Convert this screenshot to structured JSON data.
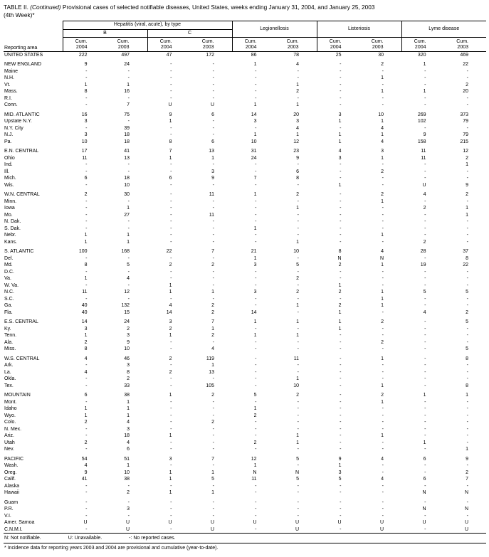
{
  "title": {
    "prefix": "TABLE II.",
    "continued": "(Continued)",
    "rest": "Provisional cases of selected notifiable diseases, United States, weeks ending January 31, 2004, and January 25, 2003",
    "line2": "(4th Week)*"
  },
  "header": {
    "reporting_area": "Reporting area",
    "hepatitis_group": "Hepatitis (viral, acute), by type",
    "hep_b": "B",
    "hep_c": "C",
    "legionellosis": "Legionellosis",
    "listeriosis": "Listeriosis",
    "lyme_disease": "Lyme disease",
    "cum_label": "Cum.",
    "years": [
      "2004",
      "2003",
      "2004",
      "2003",
      "2004",
      "2003",
      "2004",
      "2003",
      "2004",
      "2003"
    ]
  },
  "groups": [
    [
      {
        "a": "UNITED STATES",
        "v": [
          "222",
          "497",
          "47",
          "172",
          "86",
          "78",
          "25",
          "30",
          "320",
          "469"
        ]
      }
    ],
    [
      {
        "a": "NEW ENGLAND",
        "v": [
          "9",
          "24",
          "-",
          "-",
          "1",
          "4",
          "-",
          "2",
          "1",
          "22"
        ]
      },
      {
        "a": "Maine",
        "v": [
          "-",
          "-",
          "-",
          "-",
          "-",
          "-",
          "-",
          "-",
          "-",
          "-"
        ]
      },
      {
        "a": "N.H.",
        "v": [
          "-",
          "-",
          "-",
          "-",
          "-",
          "-",
          "-",
          "1",
          "-",
          "-"
        ]
      },
      {
        "a": "Vt.",
        "v": [
          "1",
          "1",
          "-",
          "-",
          "-",
          "1",
          "-",
          "-",
          "-",
          "2"
        ]
      },
      {
        "a": "Mass.",
        "v": [
          "8",
          "16",
          "-",
          "-",
          "-",
          "2",
          "-",
          "1",
          "1",
          "20"
        ]
      },
      {
        "a": "R.I.",
        "v": [
          "-",
          "-",
          "-",
          "-",
          "-",
          "-",
          "-",
          "-",
          "-",
          "-"
        ]
      },
      {
        "a": "Conn.",
        "v": [
          "-",
          "7",
          "U",
          "U",
          "1",
          "1",
          "-",
          "-",
          "-",
          "-"
        ]
      }
    ],
    [
      {
        "a": "MID. ATLANTIC",
        "v": [
          "16",
          "75",
          "9",
          "6",
          "14",
          "20",
          "3",
          "10",
          "269",
          "373"
        ]
      },
      {
        "a": "Upstate N.Y.",
        "v": [
          "3",
          "-",
          "1",
          "-",
          "3",
          "3",
          "1",
          "1",
          "102",
          "79"
        ]
      },
      {
        "a": "N.Y. City",
        "v": [
          "-",
          "39",
          "-",
          "-",
          "-",
          "4",
          "-",
          "4",
          "-",
          "-"
        ]
      },
      {
        "a": "N.J.",
        "v": [
          "3",
          "18",
          "-",
          "-",
          "1",
          "1",
          "1",
          "1",
          "9",
          "79"
        ]
      },
      {
        "a": "Pa.",
        "v": [
          "10",
          "18",
          "8",
          "6",
          "10",
          "12",
          "1",
          "4",
          "158",
          "215"
        ]
      }
    ],
    [
      {
        "a": "E.N. CENTRAL",
        "v": [
          "17",
          "41",
          "7",
          "13",
          "31",
          "23",
          "4",
          "3",
          "11",
          "12"
        ]
      },
      {
        "a": "Ohio",
        "v": [
          "11",
          "13",
          "1",
          "1",
          "24",
          "9",
          "3",
          "1",
          "11",
          "2"
        ]
      },
      {
        "a": "Ind.",
        "v": [
          "-",
          "-",
          "-",
          "-",
          "-",
          "-",
          "-",
          "-",
          "-",
          "1"
        ]
      },
      {
        "a": "Ill.",
        "v": [
          "-",
          "-",
          "-",
          "3",
          "-",
          "6",
          "-",
          "2",
          "-",
          "-"
        ]
      },
      {
        "a": "Mich.",
        "v": [
          "6",
          "18",
          "6",
          "9",
          "7",
          "8",
          "-",
          "-",
          "-",
          "-"
        ]
      },
      {
        "a": "Wis.",
        "v": [
          "-",
          "10",
          "-",
          "-",
          "-",
          "-",
          "1",
          "-",
          "U",
          "9"
        ]
      }
    ],
    [
      {
        "a": "W.N. CENTRAL",
        "v": [
          "2",
          "30",
          "-",
          "11",
          "1",
          "2",
          "-",
          "2",
          "4",
          "2"
        ]
      },
      {
        "a": "Minn.",
        "v": [
          "-",
          "-",
          "-",
          "-",
          "-",
          "-",
          "-",
          "1",
          "-",
          "-"
        ]
      },
      {
        "a": "Iowa",
        "v": [
          "-",
          "1",
          "-",
          "-",
          "-",
          "1",
          "-",
          "-",
          "2",
          "1"
        ]
      },
      {
        "a": "Mo.",
        "v": [
          "-",
          "27",
          "-",
          "11",
          "-",
          "-",
          "-",
          "-",
          "-",
          "1"
        ]
      },
      {
        "a": "N. Dak.",
        "v": [
          "-",
          "-",
          "-",
          "-",
          "-",
          "-",
          "-",
          "-",
          "-",
          "-"
        ]
      },
      {
        "a": "S. Dak.",
        "v": [
          "-",
          "-",
          "-",
          "-",
          "1",
          "-",
          "-",
          "-",
          "-",
          "-"
        ]
      },
      {
        "a": "Nebr.",
        "v": [
          "1",
          "1",
          "-",
          "-",
          "-",
          "-",
          "-",
          "1",
          "-",
          "-"
        ]
      },
      {
        "a": "Kans.",
        "v": [
          "1",
          "1",
          "-",
          "-",
          "-",
          "1",
          "-",
          "-",
          "2",
          "-"
        ]
      }
    ],
    [
      {
        "a": "S. ATLANTIC",
        "v": [
          "100",
          "168",
          "22",
          "7",
          "21",
          "10",
          "8",
          "4",
          "28",
          "37"
        ]
      },
      {
        "a": "Del.",
        "v": [
          "-",
          "-",
          "-",
          "-",
          "1",
          "-",
          "N",
          "N",
          "-",
          "8"
        ]
      },
      {
        "a": "Md.",
        "v": [
          "8",
          "5",
          "2",
          "2",
          "3",
          "5",
          "2",
          "1",
          "19",
          "22"
        ]
      },
      {
        "a": "D.C.",
        "v": [
          "-",
          "-",
          "-",
          "-",
          "-",
          "-",
          "-",
          "-",
          "-",
          "-"
        ]
      },
      {
        "a": "Va.",
        "v": [
          "1",
          "4",
          "-",
          "-",
          "-",
          "2",
          "-",
          "-",
          "-",
          "-"
        ]
      },
      {
        "a": "W. Va.",
        "v": [
          "-",
          "-",
          "1",
          "-",
          "-",
          "-",
          "1",
          "-",
          "-",
          "-"
        ]
      },
      {
        "a": "N.C.",
        "v": [
          "11",
          "12",
          "1",
          "1",
          "3",
          "2",
          "2",
          "1",
          "5",
          "5"
        ]
      },
      {
        "a": "S.C.",
        "v": [
          "-",
          "-",
          "-",
          "-",
          "-",
          "-",
          "-",
          "1",
          "-",
          "-"
        ]
      },
      {
        "a": "Ga.",
        "v": [
          "40",
          "132",
          "4",
          "2",
          "-",
          "1",
          "2",
          "1",
          "-",
          "-"
        ]
      },
      {
        "a": "Fla.",
        "v": [
          "40",
          "15",
          "14",
          "2",
          "14",
          "-",
          "1",
          "-",
          "4",
          "2"
        ]
      }
    ],
    [
      {
        "a": "E.S. CENTRAL",
        "v": [
          "14",
          "24",
          "3",
          "7",
          "1",
          "1",
          "1",
          "2",
          "-",
          "5"
        ]
      },
      {
        "a": "Ky.",
        "v": [
          "3",
          "2",
          "2",
          "1",
          "-",
          "-",
          "1",
          "-",
          "-",
          "-"
        ]
      },
      {
        "a": "Tenn.",
        "v": [
          "1",
          "3",
          "1",
          "2",
          "1",
          "1",
          "-",
          "-",
          "-",
          "-"
        ]
      },
      {
        "a": "Ala.",
        "v": [
          "2",
          "9",
          "-",
          "-",
          "-",
          "-",
          "-",
          "2",
          "-",
          "-"
        ]
      },
      {
        "a": "Miss.",
        "v": [
          "8",
          "10",
          "-",
          "4",
          "-",
          "-",
          "-",
          "-",
          "-",
          "5"
        ]
      }
    ],
    [
      {
        "a": "W.S. CENTRAL",
        "v": [
          "4",
          "46",
          "2",
          "119",
          "-",
          "11",
          "-",
          "1",
          "-",
          "8"
        ]
      },
      {
        "a": "Ark.",
        "v": [
          "-",
          "3",
          "-",
          "1",
          "-",
          "-",
          "-",
          "-",
          "-",
          "-"
        ]
      },
      {
        "a": "La.",
        "v": [
          "4",
          "8",
          "2",
          "13",
          "-",
          "-",
          "-",
          "-",
          "-",
          "-"
        ]
      },
      {
        "a": "Okla.",
        "v": [
          "-",
          "2",
          "-",
          "-",
          "-",
          "1",
          "-",
          "-",
          "-",
          "-"
        ]
      },
      {
        "a": "Tex.",
        "v": [
          "-",
          "33",
          "-",
          "105",
          "-",
          "10",
          "-",
          "1",
          "-",
          "8"
        ]
      }
    ],
    [
      {
        "a": "MOUNTAIN",
        "v": [
          "6",
          "38",
          "1",
          "2",
          "5",
          "2",
          "-",
          "2",
          "1",
          "1"
        ]
      },
      {
        "a": "Mont.",
        "v": [
          "-",
          "1",
          "-",
          "-",
          "-",
          "-",
          "-",
          "1",
          "-",
          "-"
        ]
      },
      {
        "a": "Idaho",
        "v": [
          "1",
          "1",
          "-",
          "-",
          "1",
          "-",
          "-",
          "-",
          "-",
          "-"
        ]
      },
      {
        "a": "Wyo.",
        "v": [
          "1",
          "1",
          "-",
          "-",
          "2",
          "-",
          "-",
          "-",
          "-",
          "-"
        ]
      },
      {
        "a": "Colo.",
        "v": [
          "2",
          "4",
          "-",
          "2",
          "-",
          "-",
          "-",
          "-",
          "-",
          "-"
        ]
      },
      {
        "a": "N. Mex.",
        "v": [
          "-",
          "3",
          "-",
          "-",
          "-",
          "-",
          "-",
          "-",
          "-",
          "-"
        ]
      },
      {
        "a": "Ariz.",
        "v": [
          "-",
          "18",
          "1",
          "-",
          "-",
          "1",
          "-",
          "1",
          "-",
          "-"
        ]
      },
      {
        "a": "Utah",
        "v": [
          "2",
          "4",
          "-",
          "-",
          "2",
          "1",
          "-",
          "-",
          "1",
          "-"
        ]
      },
      {
        "a": "Nev.",
        "v": [
          "-",
          "6",
          "-",
          "-",
          "-",
          "-",
          "-",
          "-",
          "-",
          "1"
        ]
      }
    ],
    [
      {
        "a": "PACIFIC",
        "v": [
          "54",
          "51",
          "3",
          "7",
          "12",
          "5",
          "9",
          "4",
          "6",
          "9"
        ]
      },
      {
        "a": "Wash.",
        "v": [
          "4",
          "1",
          "-",
          "-",
          "1",
          "-",
          "1",
          "-",
          "-",
          "-"
        ]
      },
      {
        "a": "Oreg.",
        "v": [
          "9",
          "10",
          "1",
          "1",
          "N",
          "N",
          "3",
          "-",
          "-",
          "2"
        ]
      },
      {
        "a": "Calif.",
        "v": [
          "41",
          "38",
          "1",
          "5",
          "11",
          "5",
          "5",
          "4",
          "6",
          "7"
        ]
      },
      {
        "a": "Alaska",
        "v": [
          "-",
          "-",
          "-",
          "-",
          "-",
          "-",
          "-",
          "-",
          "-",
          "-"
        ]
      },
      {
        "a": "Hawaii",
        "v": [
          "-",
          "2",
          "1",
          "1",
          "-",
          "-",
          "-",
          "-",
          "N",
          "N"
        ]
      }
    ],
    [
      {
        "a": "Guam",
        "v": [
          "-",
          "-",
          "-",
          "-",
          "-",
          "-",
          "-",
          "-",
          "-",
          "-"
        ]
      },
      {
        "a": "P.R.",
        "v": [
          "-",
          "3",
          "-",
          "-",
          "-",
          "-",
          "-",
          "-",
          "N",
          "N"
        ]
      },
      {
        "a": "V.I.",
        "v": [
          "-",
          "-",
          "-",
          "-",
          "-",
          "-",
          "-",
          "-",
          "-",
          "-"
        ]
      },
      {
        "a": "Amer. Samoa",
        "v": [
          "U",
          "U",
          "U",
          "U",
          "U",
          "U",
          "U",
          "U",
          "U",
          "U"
        ]
      },
      {
        "a": "C.N.M.I.",
        "v": [
          "-",
          "U",
          "-",
          "U",
          "-",
          "U",
          "-",
          "U",
          "-",
          "U"
        ]
      }
    ]
  ],
  "footnotes": {
    "symbols": [
      "N: Not notifiable.",
      "U: Unavailable.",
      "-: No reported cases."
    ],
    "note": "* Incidence data for reporting years 2003 and 2004 are provisional and cumulative (year-to-date)."
  }
}
